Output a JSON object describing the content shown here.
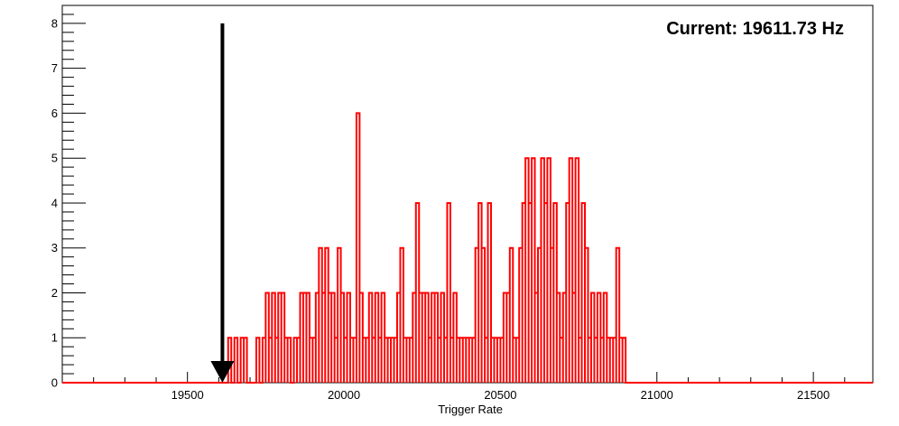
{
  "chart_data": {
    "type": "histogram",
    "xlabel": "Trigger Rate",
    "ylabel": "",
    "xlim": [
      19100,
      21690
    ],
    "ylim": [
      0,
      8.4
    ],
    "x_ticks": [
      19500,
      20000,
      20500,
      21000,
      21500
    ],
    "y_ticks": [
      0,
      1,
      2,
      3,
      4,
      5,
      6,
      7,
      8
    ],
    "grid": false,
    "bin_width": 10,
    "series": [
      {
        "color": "#ff0000",
        "bins": [
          {
            "x": 19630,
            "y": 1
          },
          {
            "x": 19650,
            "y": 1
          },
          {
            "x": 19670,
            "y": 1
          },
          {
            "x": 19680,
            "y": 1
          },
          {
            "x": 19720,
            "y": 1
          },
          {
            "x": 19740,
            "y": 1
          },
          {
            "x": 19750,
            "y": 2
          },
          {
            "x": 19760,
            "y": 1
          },
          {
            "x": 19770,
            "y": 2
          },
          {
            "x": 19780,
            "y": 1
          },
          {
            "x": 19790,
            "y": 2
          },
          {
            "x": 19800,
            "y": 2
          },
          {
            "x": 19810,
            "y": 1
          },
          {
            "x": 19820,
            "y": 1
          },
          {
            "x": 19840,
            "y": 1
          },
          {
            "x": 19850,
            "y": 1
          },
          {
            "x": 19860,
            "y": 2
          },
          {
            "x": 19870,
            "y": 2
          },
          {
            "x": 19880,
            "y": 2
          },
          {
            "x": 19890,
            "y": 1
          },
          {
            "x": 19900,
            "y": 1
          },
          {
            "x": 19910,
            "y": 2
          },
          {
            "x": 19920,
            "y": 3
          },
          {
            "x": 19930,
            "y": 2
          },
          {
            "x": 19940,
            "y": 3
          },
          {
            "x": 19950,
            "y": 2
          },
          {
            "x": 19960,
            "y": 2
          },
          {
            "x": 19970,
            "y": 1
          },
          {
            "x": 19980,
            "y": 3
          },
          {
            "x": 19990,
            "y": 2
          },
          {
            "x": 20000,
            "y": 1
          },
          {
            "x": 20010,
            "y": 2
          },
          {
            "x": 20020,
            "y": 1
          },
          {
            "x": 20030,
            "y": 1
          },
          {
            "x": 20040,
            "y": 6
          },
          {
            "x": 20050,
            "y": 2
          },
          {
            "x": 20060,
            "y": 1
          },
          {
            "x": 20070,
            "y": 1
          },
          {
            "x": 20080,
            "y": 2
          },
          {
            "x": 20090,
            "y": 1
          },
          {
            "x": 20100,
            "y": 2
          },
          {
            "x": 20110,
            "y": 1
          },
          {
            "x": 20120,
            "y": 2
          },
          {
            "x": 20130,
            "y": 1
          },
          {
            "x": 20140,
            "y": 1
          },
          {
            "x": 20150,
            "y": 1
          },
          {
            "x": 20160,
            "y": 1
          },
          {
            "x": 20170,
            "y": 2
          },
          {
            "x": 20180,
            "y": 3
          },
          {
            "x": 20190,
            "y": 1
          },
          {
            "x": 20200,
            "y": 1
          },
          {
            "x": 20210,
            "y": 1
          },
          {
            "x": 20220,
            "y": 2
          },
          {
            "x": 20230,
            "y": 4
          },
          {
            "x": 20240,
            "y": 2
          },
          {
            "x": 20250,
            "y": 2
          },
          {
            "x": 20260,
            "y": 2
          },
          {
            "x": 20270,
            "y": 1
          },
          {
            "x": 20280,
            "y": 2
          },
          {
            "x": 20290,
            "y": 2
          },
          {
            "x": 20300,
            "y": 1
          },
          {
            "x": 20310,
            "y": 2
          },
          {
            "x": 20320,
            "y": 1
          },
          {
            "x": 20330,
            "y": 4
          },
          {
            "x": 20340,
            "y": 1
          },
          {
            "x": 20350,
            "y": 2
          },
          {
            "x": 20360,
            "y": 1
          },
          {
            "x": 20370,
            "y": 1
          },
          {
            "x": 20380,
            "y": 1
          },
          {
            "x": 20390,
            "y": 1
          },
          {
            "x": 20400,
            "y": 1
          },
          {
            "x": 20410,
            "y": 1
          },
          {
            "x": 20420,
            "y": 3
          },
          {
            "x": 20430,
            "y": 4
          },
          {
            "x": 20440,
            "y": 3
          },
          {
            "x": 20450,
            "y": 1
          },
          {
            "x": 20460,
            "y": 4
          },
          {
            "x": 20470,
            "y": 1
          },
          {
            "x": 20480,
            "y": 1
          },
          {
            "x": 20490,
            "y": 1
          },
          {
            "x": 20500,
            "y": 1
          },
          {
            "x": 20510,
            "y": 2
          },
          {
            "x": 20520,
            "y": 2
          },
          {
            "x": 20530,
            "y": 3
          },
          {
            "x": 20540,
            "y": 1
          },
          {
            "x": 20550,
            "y": 1
          },
          {
            "x": 20560,
            "y": 3
          },
          {
            "x": 20570,
            "y": 4
          },
          {
            "x": 20580,
            "y": 5
          },
          {
            "x": 20590,
            "y": 4
          },
          {
            "x": 20600,
            "y": 5
          },
          {
            "x": 20610,
            "y": 2
          },
          {
            "x": 20620,
            "y": 3
          },
          {
            "x": 20630,
            "y": 5
          },
          {
            "x": 20640,
            "y": 4
          },
          {
            "x": 20650,
            "y": 5
          },
          {
            "x": 20660,
            "y": 3
          },
          {
            "x": 20670,
            "y": 4
          },
          {
            "x": 20680,
            "y": 2
          },
          {
            "x": 20690,
            "y": 1
          },
          {
            "x": 20700,
            "y": 2
          },
          {
            "x": 20710,
            "y": 4
          },
          {
            "x": 20720,
            "y": 5
          },
          {
            "x": 20730,
            "y": 2
          },
          {
            "x": 20740,
            "y": 5
          },
          {
            "x": 20750,
            "y": 1
          },
          {
            "x": 20760,
            "y": 4
          },
          {
            "x": 20770,
            "y": 3
          },
          {
            "x": 20780,
            "y": 1
          },
          {
            "x": 20790,
            "y": 2
          },
          {
            "x": 20800,
            "y": 1
          },
          {
            "x": 20810,
            "y": 2
          },
          {
            "x": 20820,
            "y": 1
          },
          {
            "x": 20830,
            "y": 2
          },
          {
            "x": 20840,
            "y": 1
          },
          {
            "x": 20850,
            "y": 1
          },
          {
            "x": 20860,
            "y": 1
          },
          {
            "x": 20870,
            "y": 3
          },
          {
            "x": 20880,
            "y": 1
          },
          {
            "x": 20890,
            "y": 1
          }
        ]
      }
    ],
    "annotation": {
      "text": "Current: 19611.73 Hz",
      "marker_x": 19611.73,
      "marker_top": 8
    }
  }
}
